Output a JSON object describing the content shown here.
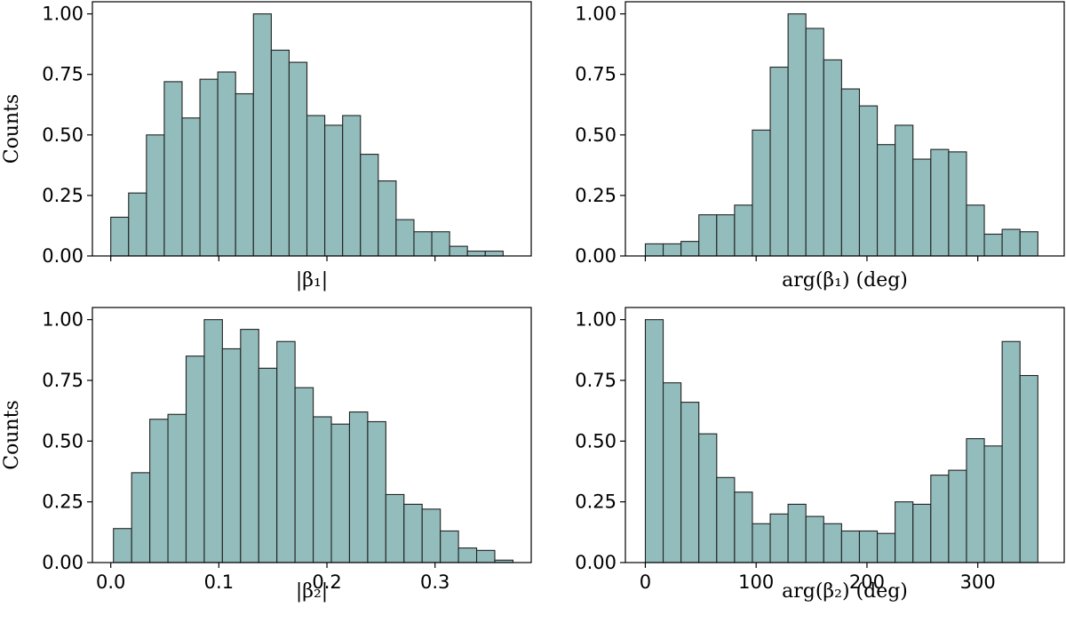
{
  "chart_data": [
    {
      "type": "bar",
      "panel": "top-left",
      "title": "",
      "xlabel": "|β₁|",
      "ylabel": "Counts",
      "ylim": [
        0,
        1.05
      ],
      "xlim": [
        -0.017,
        0.389
      ],
      "bin_start": 0.0,
      "bin_width": 0.0165,
      "values": [
        0.16,
        0.26,
        0.5,
        0.72,
        0.57,
        0.73,
        0.76,
        0.67,
        1.0,
        0.85,
        0.8,
        0.58,
        0.54,
        0.58,
        0.42,
        0.31,
        0.15,
        0.1,
        0.1,
        0.04,
        0.02,
        0.02
      ],
      "yticks": [
        "0.00",
        "0.25",
        "0.50",
        "0.75",
        "1.00"
      ],
      "xticks": [],
      "color": "#93bcbc"
    },
    {
      "type": "bar",
      "panel": "top-right",
      "title": "",
      "xlabel": "arg(β₁) (deg)",
      "ylabel": "",
      "ylim": [
        0,
        1.05
      ],
      "xlim": [
        -18,
        378
      ],
      "bin_start": 0,
      "bin_width": 16.1,
      "values": [
        0.05,
        0.05,
        0.06,
        0.17,
        0.17,
        0.21,
        0.52,
        0.78,
        1.0,
        0.94,
        0.81,
        0.69,
        0.62,
        0.46,
        0.54,
        0.4,
        0.44,
        0.43,
        0.21,
        0.09,
        0.11,
        0.1
      ],
      "yticks": [
        "0.00",
        "0.25",
        "0.50",
        "0.75",
        "1.00"
      ],
      "xticks": [],
      "color": "#93bcbc"
    },
    {
      "type": "bar",
      "panel": "bottom-left",
      "title": "",
      "xlabel": "|β₂|",
      "ylabel": "Counts",
      "ylim": [
        0,
        1.05
      ],
      "xlim": [
        -0.017,
        0.389
      ],
      "bin_start": 0.0025,
      "bin_width": 0.0168,
      "values": [
        0.14,
        0.37,
        0.59,
        0.61,
        0.85,
        1.0,
        0.88,
        0.96,
        0.8,
        0.91,
        0.72,
        0.6,
        0.57,
        0.62,
        0.58,
        0.28,
        0.24,
        0.22,
        0.13,
        0.06,
        0.05,
        0.01
      ],
      "yticks": [
        "0.00",
        "0.25",
        "0.50",
        "0.75",
        "1.00"
      ],
      "xticks": [
        "0.0",
        "0.1",
        "0.2",
        "0.3"
      ],
      "xtick_values": [
        0.0,
        0.1,
        0.2,
        0.3
      ],
      "color": "#93bcbc"
    },
    {
      "type": "bar",
      "panel": "bottom-right",
      "title": "",
      "xlabel": "arg(β₂) (deg)",
      "ylabel": "",
      "ylim": [
        0,
        1.05
      ],
      "xlim": [
        -18,
        378
      ],
      "bin_start": 0,
      "bin_width": 16.1,
      "values": [
        1.0,
        0.74,
        0.66,
        0.53,
        0.35,
        0.29,
        0.16,
        0.2,
        0.24,
        0.19,
        0.16,
        0.13,
        0.13,
        0.12,
        0.25,
        0.24,
        0.36,
        0.38,
        0.51,
        0.48,
        0.91,
        0.77
      ],
      "yticks": [
        "0.00",
        "0.25",
        "0.50",
        "0.75",
        "1.00"
      ],
      "xticks": [
        "0",
        "100",
        "200",
        "300"
      ],
      "xtick_values": [
        0,
        100,
        200,
        300
      ],
      "color": "#93bcbc"
    }
  ]
}
